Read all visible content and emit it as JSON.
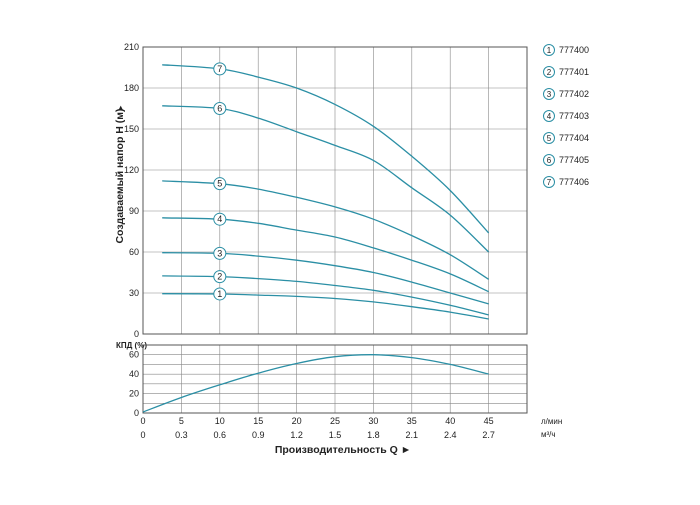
{
  "chart_data": [
    {
      "type": "line",
      "panel": "head",
      "ylabel": "Создаваемый напор H (м)",
      "ylim": [
        0,
        210
      ],
      "yticks": [
        0,
        30,
        60,
        90,
        120,
        150,
        180,
        210
      ],
      "xlim": [
        0,
        50
      ],
      "grid": true,
      "legend_position": "right",
      "series": [
        {
          "name": "777400",
          "badge": "1",
          "x": [
            2.5,
            10,
            15,
            20,
            25,
            30,
            35,
            40,
            45
          ],
          "y": [
            29.5,
            29.3,
            28.5,
            27.5,
            26,
            23.5,
            20,
            16,
            11
          ]
        },
        {
          "name": "777401",
          "badge": "2",
          "x": [
            2.5,
            10,
            15,
            20,
            25,
            30,
            35,
            40,
            45
          ],
          "y": [
            42.5,
            42,
            40.5,
            38.5,
            35.5,
            32,
            27,
            21,
            14
          ]
        },
        {
          "name": "777402",
          "badge": "3",
          "x": [
            2.5,
            10,
            15,
            20,
            25,
            30,
            35,
            40,
            45
          ],
          "y": [
            59.5,
            59,
            57,
            54,
            50,
            45,
            38,
            30,
            22
          ]
        },
        {
          "name": "777403",
          "badge": "4",
          "x": [
            2.5,
            10,
            15,
            20,
            25,
            30,
            35,
            40,
            45
          ],
          "y": [
            85,
            84,
            81,
            76,
            71,
            63,
            54,
            44,
            31
          ]
        },
        {
          "name": "777404",
          "badge": "5",
          "x": [
            2.5,
            10,
            15,
            20,
            25,
            30,
            35,
            40,
            45
          ],
          "y": [
            112,
            110,
            106,
            100,
            93,
            84,
            72,
            58,
            40
          ]
        },
        {
          "name": "777405",
          "badge": "6",
          "x": [
            2.5,
            10,
            15,
            20,
            25,
            30,
            35,
            40,
            45
          ],
          "y": [
            167,
            165,
            158,
            148,
            138,
            127,
            107,
            87,
            60
          ]
        },
        {
          "name": "777406",
          "badge": "7",
          "x": [
            2.5,
            10,
            15,
            20,
            25,
            30,
            35,
            40,
            45
          ],
          "y": [
            197,
            194,
            188,
            180,
            168,
            152,
            130,
            105,
            74
          ]
        }
      ]
    },
    {
      "type": "line",
      "panel": "efficiency",
      "ylabel": "КПД (%)",
      "ylim": [
        0,
        70
      ],
      "yticks": [
        0,
        20,
        40,
        60
      ],
      "xlim": [
        0,
        50
      ],
      "grid": true,
      "series": [
        {
          "x": [
            0,
            5,
            10,
            15,
            20,
            25,
            30,
            35,
            40,
            45
          ],
          "y": [
            1,
            16,
            29,
            41,
            51,
            58,
            60,
            57,
            50,
            40
          ]
        }
      ]
    }
  ],
  "x_axis": {
    "label": "Производительность Q ►",
    "unit_primary": "л/мин",
    "unit_secondary": "м³/ч",
    "ticks_primary": [
      "0",
      "5",
      "10",
      "15",
      "20",
      "25",
      "30",
      "35",
      "40",
      "45"
    ],
    "ticks_secondary": [
      "0",
      "0.3",
      "0.6",
      "0.9",
      "1.2",
      "1.5",
      "1.8",
      "2.1",
      "2.4",
      "2.7"
    ]
  },
  "y_axis_arrow": "►",
  "colors": {
    "curve": "#2b8fa5",
    "grid": "#888888",
    "frame": "#555555",
    "badge_fill": "#ffffff",
    "badge_stroke": "#2b8fa5"
  }
}
